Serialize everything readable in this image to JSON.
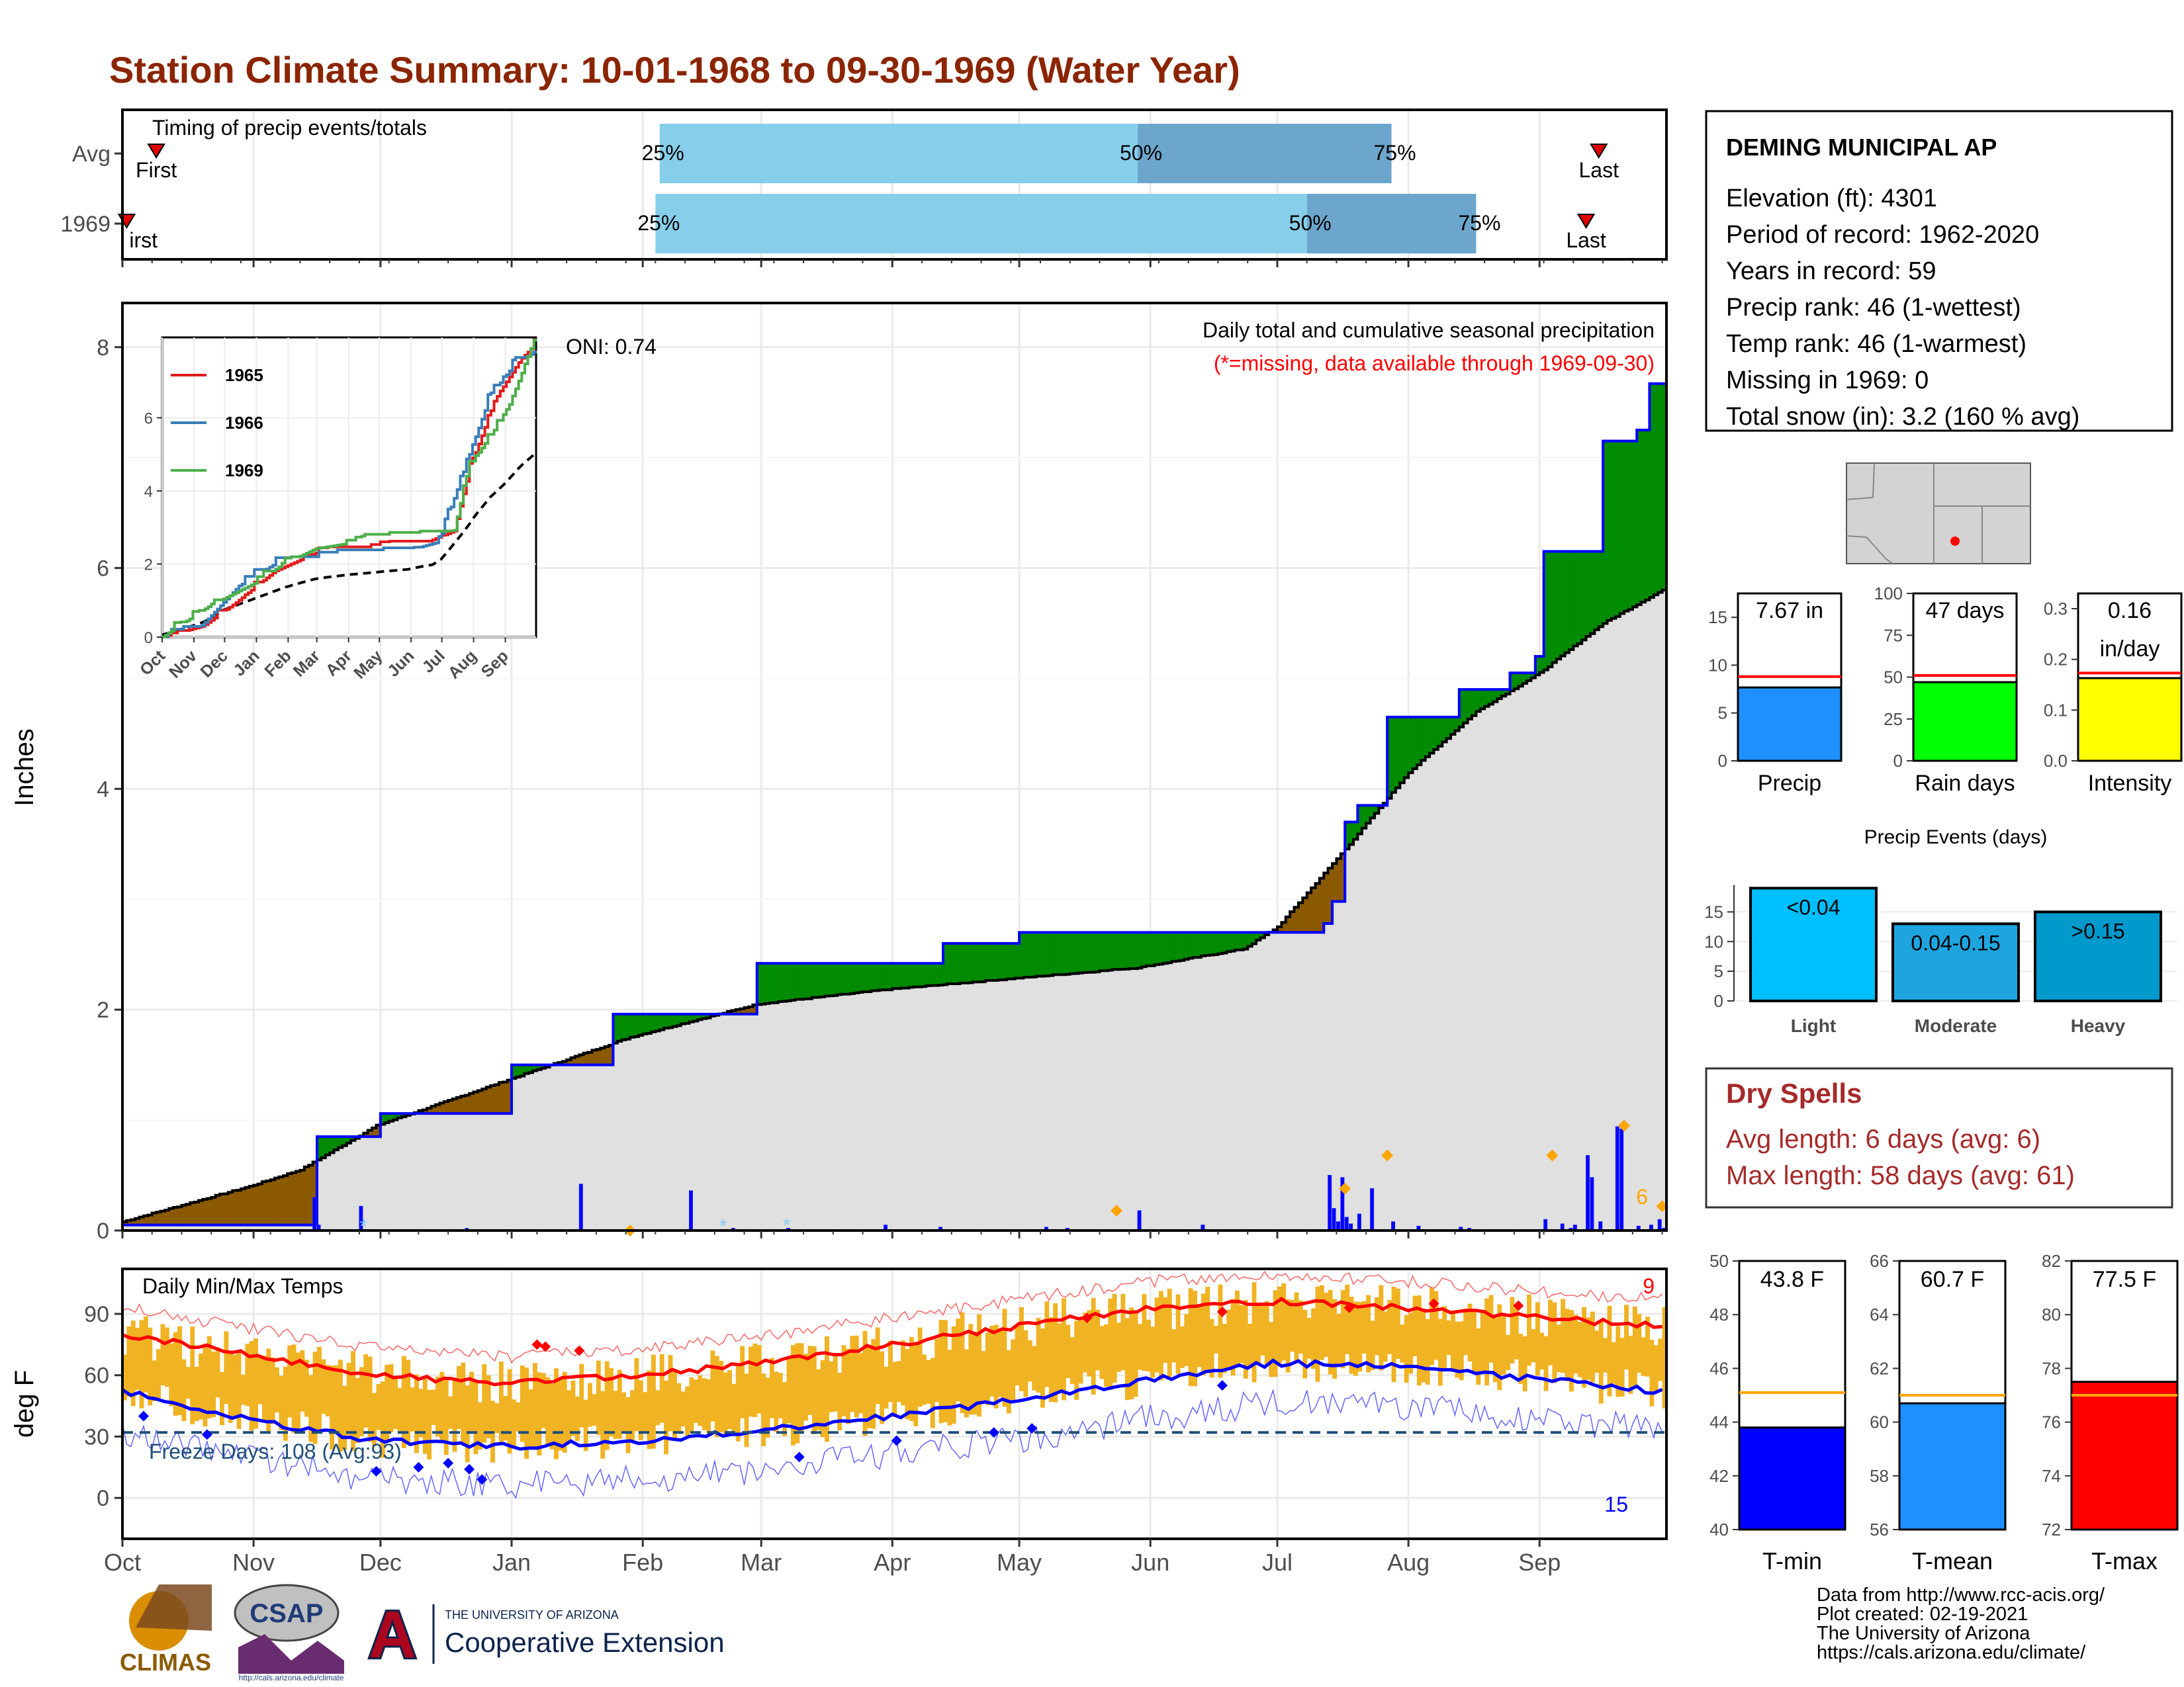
{
  "title": "Station Climate Summary: 10-01-1968 to 09-30-1969 (Water Year)",
  "months": [
    "Oct",
    "Nov",
    "Dec",
    "Jan",
    "Feb",
    "Mar",
    "Apr",
    "May",
    "Jun",
    "Jul",
    "Aug",
    "Sep"
  ],
  "timing": {
    "label": "Timing of precip events/totals",
    "rows": [
      {
        "name": "Avg",
        "first_label": "First",
        "last_label": "Last",
        "p25": "25%",
        "p50": "50%",
        "p75": "75%",
        "first_doy": 8,
        "q25_doy": 127,
        "q50_doy": 240,
        "q75_doy": 300,
        "last_doy": 349
      },
      {
        "name": "1969",
        "first_label": "irst",
        "last_label": "Last",
        "p25": "25%",
        "p50": "50%",
        "p75": "75%",
        "first_doy": 1,
        "q25_doy": 126,
        "q50_doy": 280,
        "q75_doy": 320,
        "last_doy": 346
      }
    ]
  },
  "precip_panel": {
    "ylabel": "Inches",
    "header": "Daily total and cumulative seasonal precipitation",
    "missing_note": "(*=missing, data available through 1969-09-30)",
    "oni": "ONI: 0.74",
    "count_label": "6",
    "yticks": [
      "0",
      "2",
      "4",
      "6",
      "8"
    ],
    "ylim": [
      0,
      8.4
    ]
  },
  "inset": {
    "legend": [
      "1965",
      "1966",
      "1969"
    ],
    "months": [
      "Oct",
      "Nov",
      "Dec",
      "Jan",
      "Feb",
      "Mar",
      "Apr",
      "May",
      "Jun",
      "Jul",
      "Aug",
      "Sep"
    ],
    "yticks": [
      "0",
      "2",
      "4",
      "6"
    ]
  },
  "station": {
    "name": "DEMING MUNICIPAL AP",
    "lines": [
      "Elevation (ft): 4301",
      "Period of record: 1962-2020",
      "Years in record: 59",
      "Precip rank: 46 (1-wettest)",
      "Temp rank: 46 (1-warmest)",
      "Missing in 1969: 0",
      "Total snow (in): 3.2 (160 % avg)"
    ]
  },
  "mini_bars": {
    "precip": {
      "label": "Precip",
      "value_text": "7.67 in",
      "value": 7.67,
      "avg": 8.8,
      "ymax": 17.5,
      "yticks": [
        "0",
        "5",
        "10",
        "15"
      ],
      "color": "#1e90ff"
    },
    "rain_days": {
      "label": "Rain days",
      "value_text": "47 days",
      "value": 47,
      "avg": 51,
      "ymax": 100,
      "yticks": [
        "0",
        "25",
        "50",
        "75",
        "100"
      ],
      "color": "#00ff00"
    },
    "intensity": {
      "label": "Intensity",
      "value_text": "0.16",
      "value_text2": "in/day",
      "value": 0.163,
      "avg": 0.173,
      "ymax": 0.33,
      "yticks": [
        "0.0",
        "0.1",
        "0.2",
        "0.3"
      ],
      "color": "#ffff00"
    }
  },
  "events": {
    "title": "Precip Events (days)",
    "yticks": [
      "0",
      "5",
      "10",
      "15"
    ],
    "categories": [
      "Light",
      "Moderate",
      "Heavy"
    ],
    "labels": [
      "<0.04",
      "0.04-0.15",
      ">0.15"
    ],
    "values": [
      19,
      13,
      15
    ],
    "colors": [
      "#00bfff",
      "#1ea5e0",
      "#0099cc"
    ]
  },
  "dry_spells": {
    "title": "Dry Spells",
    "avg": "Avg length: 6 days (avg: 6)",
    "max": "Max length: 58 days (avg: 61)"
  },
  "temp_panel": {
    "title": "Daily Min/Max Temps",
    "ylabel": "deg F",
    "freeze": "Freeze Days: 108 (Avg:93)",
    "hot_count": "9",
    "cold_count": "15",
    "yticks": [
      "0",
      "30",
      "60",
      "90"
    ]
  },
  "temp_bars": {
    "tmin": {
      "label": "T-min",
      "value_text": "43.8 F",
      "value": 43.8,
      "avg": 45.1,
      "ymin": 40,
      "ymax": 50,
      "yticks": [
        "40",
        "42",
        "44",
        "46",
        "48",
        "50"
      ],
      "color": "#0000ff"
    },
    "tmean": {
      "label": "T-mean",
      "value_text": "60.7 F",
      "value": 60.7,
      "avg": 61.0,
      "ymin": 56,
      "ymax": 66,
      "yticks": [
        "56",
        "58",
        "60",
        "62",
        "64",
        "66"
      ],
      "color": "#1e90ff"
    },
    "tmax": {
      "label": "T-max",
      "value_text": "77.5 F",
      "value": 77.5,
      "avg": 77.0,
      "ymin": 72,
      "ymax": 82,
      "yticks": [
        "72",
        "74",
        "76",
        "78",
        "80",
        "82"
      ],
      "color": "#ff0000"
    }
  },
  "footer": {
    "lines": [
      "Data from http://www.rcc-acis.org/",
      "Plot created: 02-19-2021",
      "The University of Arizona",
      "https://cals.arizona.edu/climate/"
    ],
    "climas": "CLIMAS",
    "csap": "CSAP",
    "csap_url": "http://cals.arizona.edu/climate",
    "ua_small": "THE UNIVERSITY OF ARIZONA",
    "coop": "Cooperative Extension",
    "ua_letter": "A"
  },
  "chart_data": [
    {
      "type": "bar",
      "title": "Timing of precip events/totals",
      "categories": [
        "Avg",
        "1969"
      ],
      "series": [
        {
          "name": "25%",
          "values": [
            127,
            126
          ]
        },
        {
          "name": "50%",
          "values": [
            240,
            280
          ]
        },
        {
          "name": "75%",
          "values": [
            300,
            320
          ]
        }
      ]
    },
    {
      "type": "area",
      "title": "Daily total and cumulative seasonal precipitation",
      "ylabel": "Inches",
      "ylim": [
        0,
        8.4
      ],
      "x": [
        "Oct",
        "Nov",
        "Dec",
        "Jan",
        "Feb",
        "Mar",
        "Apr",
        "May",
        "Jun",
        "Jul",
        "Aug",
        "Sep"
      ],
      "series": [
        {
          "name": "cumulative_1969",
          "values": [
            0.05,
            0.85,
            1.06,
            1.5,
            1.96,
            2.42,
            2.42,
            2.6,
            2.7,
            4.65,
            6.15,
            7.67
          ]
        },
        {
          "name": "cumulative_avg",
          "values": [
            0.1,
            0.55,
            1.0,
            1.4,
            1.8,
            2.1,
            2.25,
            2.35,
            2.65,
            3.6,
            4.6,
            5.75
          ]
        }
      ]
    },
    {
      "type": "bar",
      "title": "Precip",
      "categories": [
        "Precip"
      ],
      "values": [
        7.67
      ],
      "ylim": [
        0,
        17.5
      ]
    },
    {
      "type": "bar",
      "title": "Rain days",
      "categories": [
        "Rain days"
      ],
      "values": [
        47
      ],
      "ylim": [
        0,
        100
      ]
    },
    {
      "type": "bar",
      "title": "Intensity",
      "categories": [
        "Intensity"
      ],
      "values": [
        0.16
      ],
      "ylim": [
        0,
        0.33
      ]
    },
    {
      "type": "bar",
      "title": "Precip Events (days)",
      "categories": [
        "Light",
        "Moderate",
        "Heavy"
      ],
      "values": [
        19,
        13,
        15
      ]
    },
    {
      "type": "line",
      "title": "Daily Min/Max Temps",
      "ylabel": "deg F",
      "yticks": [
        0,
        30,
        60,
        90
      ],
      "x": [
        "Oct",
        "Nov",
        "Dec",
        "Jan",
        "Feb",
        "Mar",
        "Apr",
        "May",
        "Jun",
        "Jul",
        "Aug",
        "Sep"
      ],
      "series": [
        {
          "name": "avg_max",
          "values": [
            80,
            68,
            58,
            56,
            60,
            66,
            75,
            84,
            93,
            96,
            93,
            88
          ]
        },
        {
          "name": "avg_min",
          "values": [
            50,
            35,
            27,
            26,
            29,
            33,
            40,
            48,
            58,
            66,
            64,
            58
          ]
        }
      ]
    },
    {
      "type": "bar",
      "title": "T-min",
      "categories": [
        "T-min"
      ],
      "values": [
        43.8
      ],
      "ylim": [
        40,
        50
      ]
    },
    {
      "type": "bar",
      "title": "T-mean",
      "categories": [
        "T-mean"
      ],
      "values": [
        60.7
      ],
      "ylim": [
        56,
        66
      ]
    },
    {
      "type": "bar",
      "title": "T-max",
      "categories": [
        "T-max"
      ],
      "values": [
        77.5
      ],
      "ylim": [
        72,
        82
      ]
    }
  ]
}
